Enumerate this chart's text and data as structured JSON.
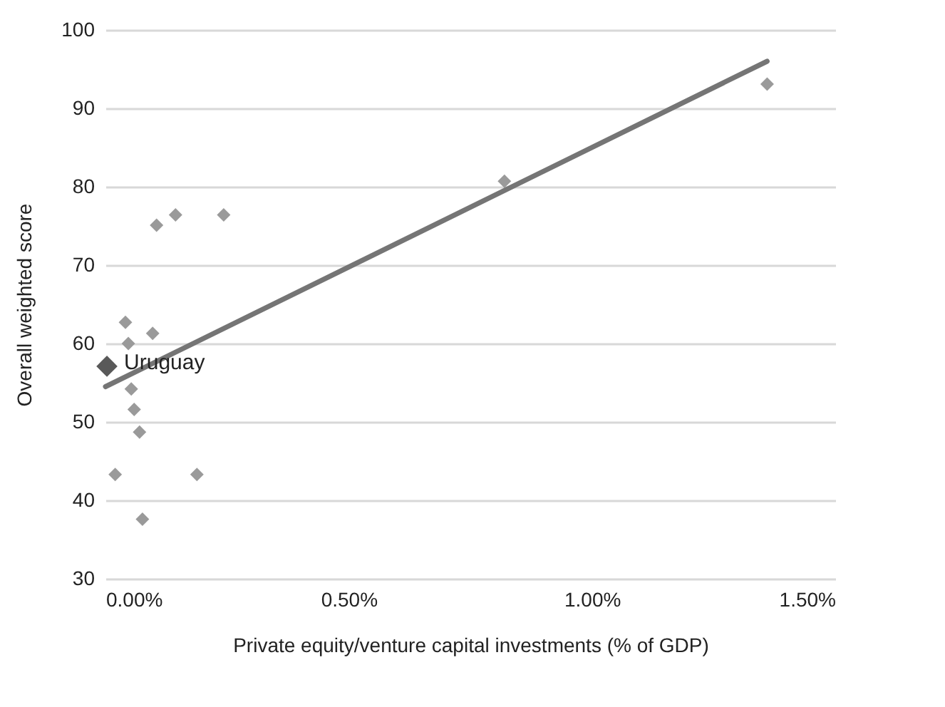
{
  "chart_data": {
    "type": "scatter",
    "xlabel": "Private equity/venture capital investments (% of GDP)",
    "ylabel": "Overall weighted score",
    "xlim": [
      0,
      1.5
    ],
    "xticks": [
      {
        "value": 0,
        "label": "0.00%"
      },
      {
        "value": 0.5,
        "label": "0.50%"
      },
      {
        "value": 1,
        "label": "1.00%"
      },
      {
        "value": 1.5,
        "label": "1.50%"
      }
    ],
    "ylim": [
      30,
      100
    ],
    "yticks": [
      30,
      40,
      50,
      60,
      70,
      80,
      90,
      100
    ],
    "grid": "y",
    "marker": "diamond",
    "series": [
      {
        "color": "#9a9a9a",
        "x": [
          0.105,
          0.144,
          0.243,
          0.041,
          0.047,
          0.097,
          0.053,
          0.059,
          0.07,
          0.02,
          0.188,
          0.076,
          0.82,
          1.36
        ],
        "values": [
          75.1,
          76.4,
          76.4,
          62.7,
          60,
          61.3,
          54.2,
          51.6,
          48.7,
          43.3,
          43.3,
          37.6,
          80.7,
          93.1
        ]
      },
      {
        "name": "Uruguay",
        "color": "#595959",
        "x": [
          0.003
        ],
        "values": [
          57.1
        ]
      },
      {
        "type": "line",
        "marker": "none",
        "color": "#757575",
        "x": [
          0,
          1.36
        ],
        "values": [
          54.5,
          96
        ]
      }
    ]
  }
}
